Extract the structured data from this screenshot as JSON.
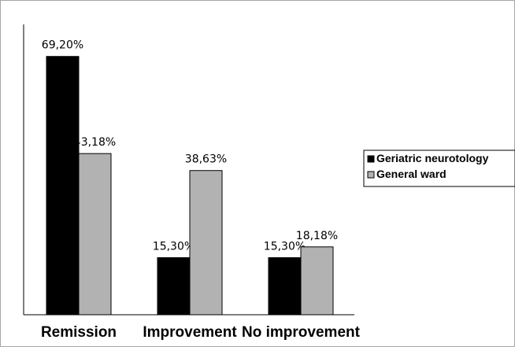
{
  "chart_data": {
    "type": "bar",
    "categories": [
      "Remission",
      "Improvement",
      "No improvement"
    ],
    "series": [
      {
        "name": "Geriatric neurotology",
        "values": [
          69.2,
          15.3,
          15.3
        ],
        "labels": [
          "69,20%",
          "15,30%",
          "15,30%"
        ],
        "color": "#000000"
      },
      {
        "name": "General ward",
        "values": [
          43.18,
          38.63,
          18.18
        ],
        "labels": [
          "43,18%",
          "38,63%",
          "18,18%"
        ],
        "color": "#b2b2b2"
      }
    ],
    "title": "",
    "xlabel": "",
    "ylabel": "",
    "ylim": [
      0,
      82
    ],
    "grid": false,
    "legend": "right"
  }
}
